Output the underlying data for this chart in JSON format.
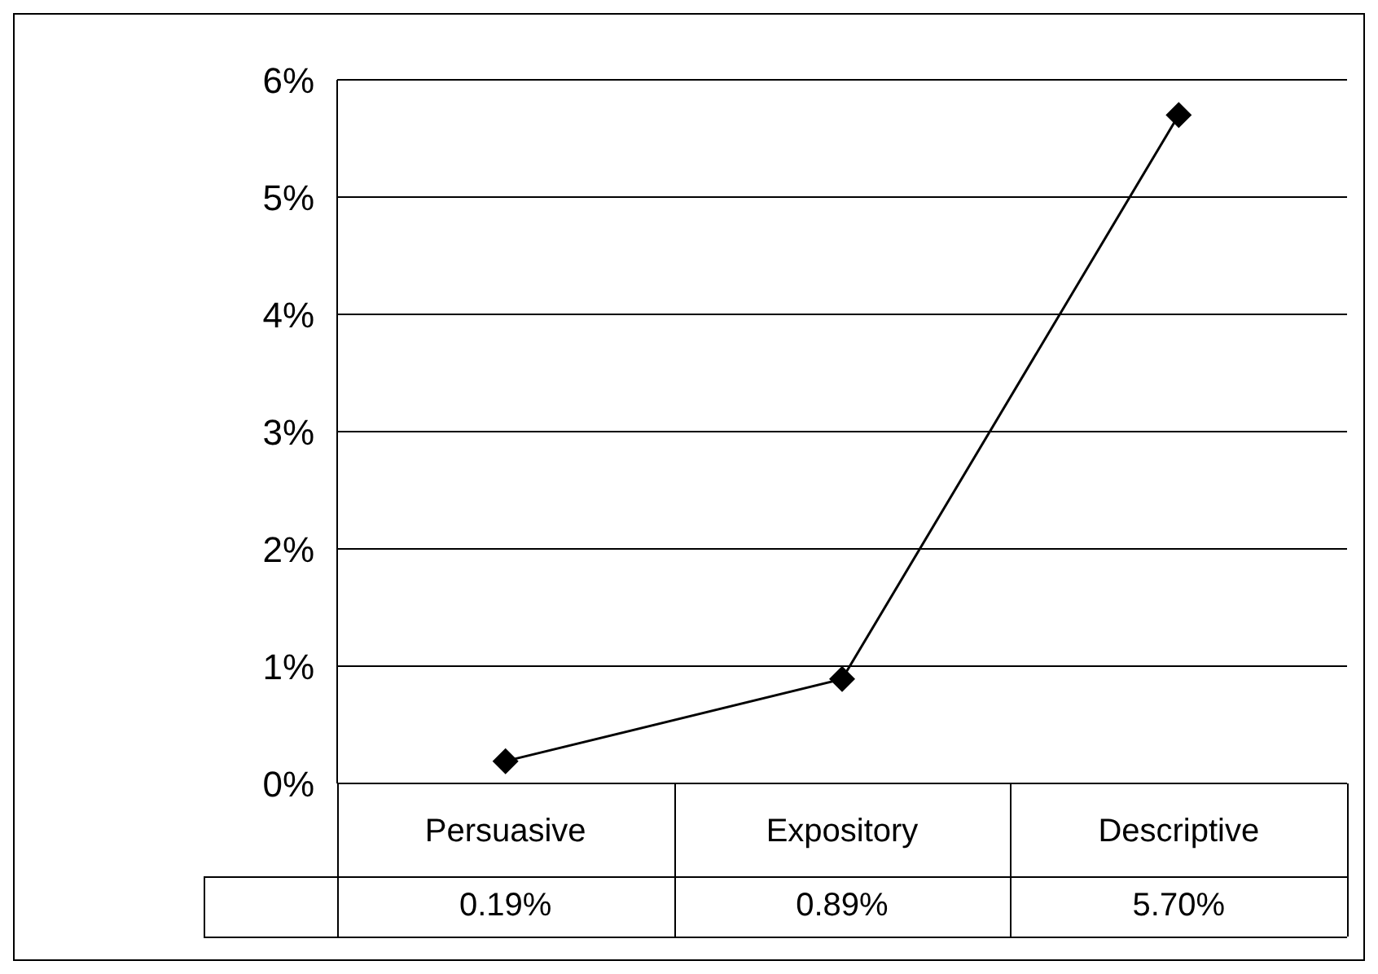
{
  "chart_data": {
    "type": "line",
    "categories": [
      "Persuasive",
      "Expository",
      "Descriptive"
    ],
    "series": [
      {
        "color": "#000000",
        "values": [
          0.19,
          0.89,
          5.7
        ],
        "value_labels": [
          "0.19%",
          "0.89%",
          "5.70%"
        ]
      }
    ],
    "ylim": [
      0,
      6
    ],
    "yticks": [
      {
        "value": 0,
        "label": "0%"
      },
      {
        "value": 1,
        "label": "1%"
      },
      {
        "value": 2,
        "label": "2%"
      },
      {
        "value": 3,
        "label": "3%"
      },
      {
        "value": 4,
        "label": "4%"
      },
      {
        "value": 5,
        "label": "5%"
      },
      {
        "value": 6,
        "label": "6%"
      }
    ],
    "grid": "y",
    "marker": "diamond",
    "line_style": "solid"
  }
}
